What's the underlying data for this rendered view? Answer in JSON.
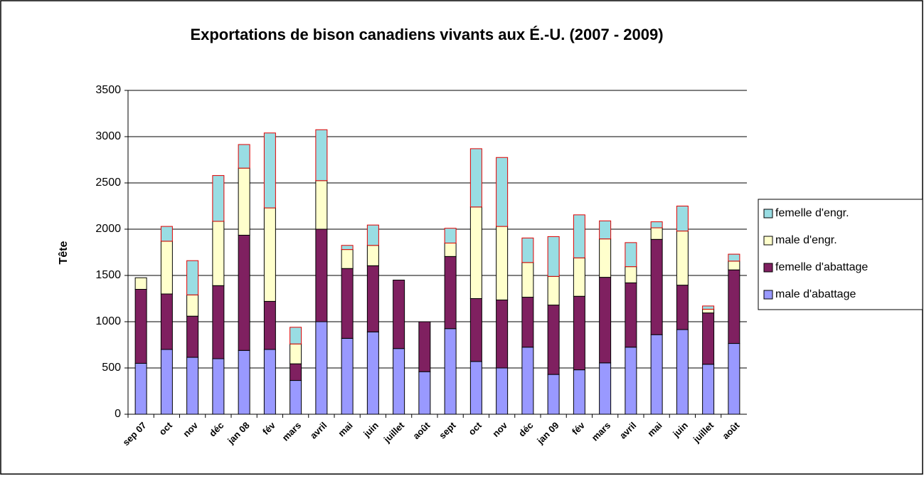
{
  "chart_data": {
    "type": "stacked_bar",
    "title": "Exportations de bison canadiens vivants aux É.-U. (2007 - 2009)",
    "y_label": "Tête",
    "categories": [
      "sep 07",
      "oct",
      "nov",
      "déc",
      "jan 08",
      "fév",
      "mars",
      "avril",
      "mai",
      "juin",
      "juillet",
      "août",
      "sept",
      "oct",
      "nov",
      "déc",
      "jan 09",
      "fév",
      "mars",
      "avril",
      "mai",
      "juin",
      "juillet",
      "août"
    ],
    "series": [
      {
        "name": "male d'abattage",
        "color": "#9999ff",
        "values": [
          550,
          700,
          615,
          600,
          690,
          700,
          365,
          1000,
          820,
          890,
          710,
          460,
          925,
          570,
          500,
          725,
          430,
          480,
          555,
          725,
          860,
          915,
          540,
          765
        ]
      },
      {
        "name": "femelle d'abattage",
        "color": "#7f2060",
        "values": [
          800,
          600,
          445,
          790,
          1245,
          520,
          180,
          1000,
          755,
          715,
          740,
          540,
          780,
          680,
          735,
          540,
          750,
          795,
          925,
          695,
          1030,
          480,
          555,
          795
        ]
      },
      {
        "name": "male d'engr.",
        "color": "#ffffcc",
        "values": [
          125,
          570,
          230,
          695,
          725,
          1010,
          215,
          525,
          205,
          220,
          0,
          0,
          145,
          990,
          795,
          375,
          310,
          415,
          415,
          175,
          125,
          585,
          40,
          95
        ]
      },
      {
        "name": "femelle d'engr.",
        "color": "#99dde3",
        "values": [
          0,
          160,
          370,
          495,
          255,
          810,
          180,
          550,
          45,
          220,
          0,
          0,
          160,
          630,
          745,
          265,
          430,
          465,
          195,
          260,
          65,
          270,
          35,
          75
        ]
      }
    ],
    "ylim": [
      0,
      3500
    ],
    "yticks": [
      0,
      500,
      1000,
      1500,
      2000,
      2500,
      3000,
      3500
    ],
    "grid": true
  }
}
